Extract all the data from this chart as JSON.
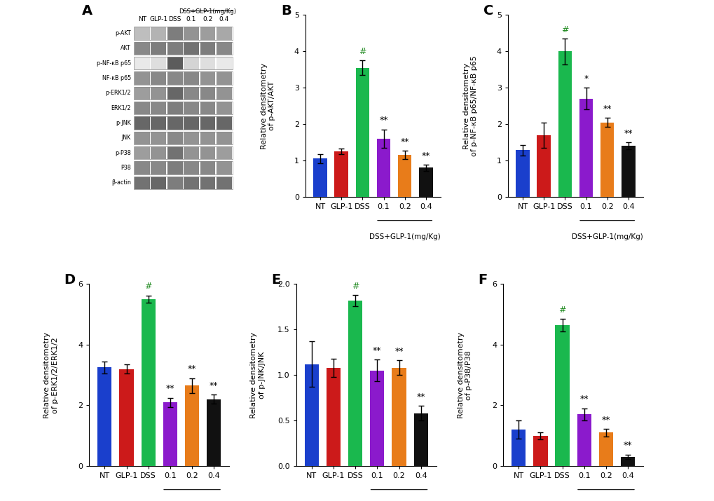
{
  "categories": [
    "NT",
    "GLP-1",
    "DSS",
    "0.1",
    "0.2",
    "0.4"
  ],
  "xlabel_bottom": "DSS+GLP-1(mg/Kg)",
  "bar_colors": [
    "#1a3fcc",
    "#cc1a1a",
    "#1ab84e",
    "#8b1acc",
    "#e87c1a",
    "#111111"
  ],
  "panels": {
    "B": {
      "label": "B",
      "ylabel": "Relative densitometry\nof p-AKT/AKT",
      "ylim": [
        0,
        5
      ],
      "yticks": [
        0,
        1,
        2,
        3,
        4,
        5
      ],
      "values": [
        1.05,
        1.25,
        3.55,
        1.6,
        1.15,
        0.8
      ],
      "errors": [
        0.12,
        0.08,
        0.2,
        0.25,
        0.12,
        0.08
      ],
      "annotations": [
        "",
        "",
        "#",
        "**",
        "**",
        "**"
      ]
    },
    "C": {
      "label": "C",
      "ylabel": "Relative densitometry\nof p-NF-κB p65/NF-κB p65",
      "ylim": [
        0,
        5
      ],
      "yticks": [
        0,
        1,
        2,
        3,
        4,
        5
      ],
      "values": [
        1.28,
        1.7,
        4.0,
        2.7,
        2.05,
        1.4
      ],
      "errors": [
        0.15,
        0.35,
        0.35,
        0.3,
        0.12,
        0.1
      ],
      "annotations": [
        "",
        "",
        "#",
        "*",
        "**",
        "**"
      ]
    },
    "D": {
      "label": "D",
      "ylabel": "Relative densitometry\nof p-ERK1/2/ERK1/2",
      "ylim": [
        0,
        6
      ],
      "yticks": [
        0,
        2,
        4,
        6
      ],
      "values": [
        3.25,
        3.2,
        5.5,
        2.1,
        2.65,
        2.2
      ],
      "errors": [
        0.2,
        0.15,
        0.12,
        0.15,
        0.25,
        0.15
      ],
      "annotations": [
        "",
        "",
        "#",
        "**",
        "**",
        "**"
      ]
    },
    "E": {
      "label": "E",
      "ylabel": "Relative densitometry\nof p-JNK/JNK",
      "ylim": [
        0,
        2.0
      ],
      "yticks": [
        0.0,
        0.5,
        1.0,
        1.5,
        2.0
      ],
      "values": [
        1.12,
        1.08,
        1.82,
        1.05,
        1.08,
        0.58
      ],
      "errors": [
        0.25,
        0.1,
        0.06,
        0.12,
        0.08,
        0.08
      ],
      "annotations": [
        "",
        "",
        "#",
        "**",
        "**",
        "**"
      ]
    },
    "F": {
      "label": "F",
      "ylabel": "Relative densitometry\nof p-P38/P38",
      "ylim": [
        0,
        6
      ],
      "yticks": [
        0,
        2,
        4,
        6
      ],
      "values": [
        1.2,
        1.0,
        4.65,
        1.7,
        1.1,
        0.3
      ],
      "errors": [
        0.3,
        0.12,
        0.2,
        0.2,
        0.12,
        0.08
      ],
      "annotations": [
        "",
        "",
        "#",
        "**",
        "**",
        "**"
      ]
    }
  },
  "panel_label_fontsize": 14,
  "bar_width": 0.65,
  "annotation_fontsize": 9,
  "tick_fontsize": 8,
  "ylabel_fontsize": 8,
  "figure_bg": "#ffffff",
  "protein_labels": [
    "p-AKT",
    "AKT",
    "p-NF-κB p65",
    "NF-κB p65",
    "p-ERK1/2",
    "ERK1/2",
    "p-JNK",
    "JNK",
    "p-P38",
    "P38",
    "β-actin"
  ],
  "col_headers": [
    "NT",
    "GLP-1",
    "DSS",
    "0.1",
    "0.2",
    "0.4"
  ],
  "band_patterns": [
    [
      0.3,
      0.35,
      0.6,
      0.5,
      0.45,
      0.4
    ],
    [
      0.55,
      0.6,
      0.6,
      0.65,
      0.6,
      0.55
    ],
    [
      0.1,
      0.15,
      0.75,
      0.2,
      0.15,
      0.1
    ],
    [
      0.5,
      0.55,
      0.55,
      0.55,
      0.5,
      0.5
    ],
    [
      0.45,
      0.5,
      0.7,
      0.55,
      0.55,
      0.5
    ],
    [
      0.55,
      0.55,
      0.6,
      0.55,
      0.55,
      0.5
    ],
    [
      0.7,
      0.7,
      0.7,
      0.7,
      0.7,
      0.7
    ],
    [
      0.5,
      0.5,
      0.55,
      0.5,
      0.5,
      0.5
    ],
    [
      0.45,
      0.5,
      0.65,
      0.5,
      0.5,
      0.45
    ],
    [
      0.55,
      0.55,
      0.6,
      0.55,
      0.55,
      0.5
    ],
    [
      0.65,
      0.7,
      0.6,
      0.65,
      0.65,
      0.65
    ]
  ]
}
